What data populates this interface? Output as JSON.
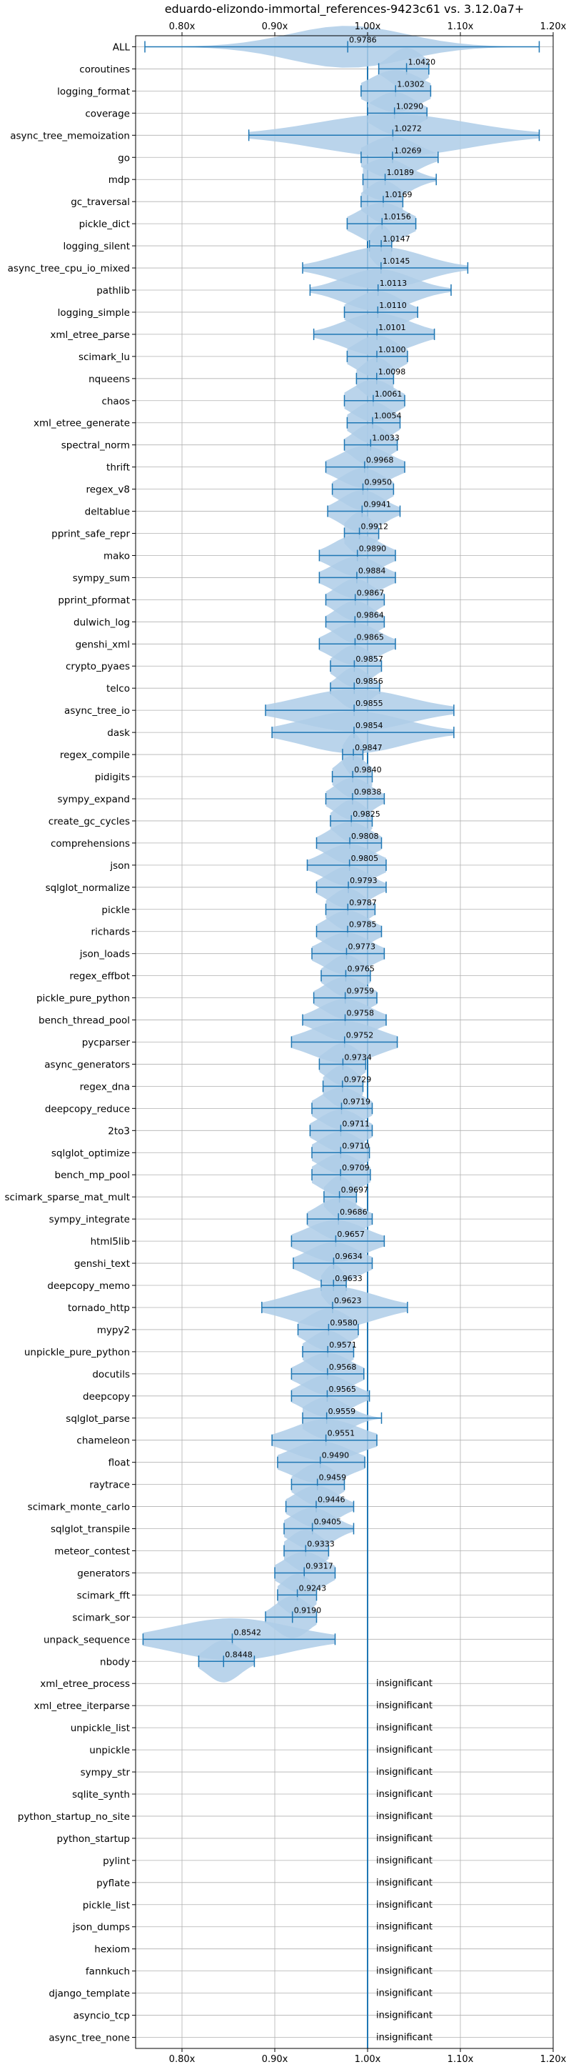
{
  "chart_data": {
    "type": "violin",
    "title": "eduardo-elizondo-immortal_references-9423c61 vs. 3.12.0a7+",
    "xlim": [
      0.75,
      1.2
    ],
    "xticks": [
      0.8,
      0.9,
      1.0,
      1.1,
      1.2
    ],
    "xtick_labels": [
      "0.80x",
      "0.90x",
      "1.00x",
      "1.10x",
      "1.20x"
    ],
    "reference_line": 1.0,
    "grid": true,
    "colors": {
      "accent": "#1f77b4",
      "violin_fill": "#aecde8",
      "grid": "#b0b0b0"
    },
    "insignificant_label": "insignificant",
    "benchmarks": [
      {
        "name": "ALL",
        "value": 0.9786,
        "value_label": "0.9786",
        "min": 0.76,
        "max": 1.185,
        "spread": 0.07
      },
      {
        "name": "coroutines",
        "value": 1.042,
        "value_label": "1.0420",
        "min": 1.012,
        "max": 1.066,
        "spread": 0.02
      },
      {
        "name": "logging_format",
        "value": 1.0302,
        "value_label": "1.0302",
        "min": 0.993,
        "max": 1.068,
        "spread": 0.03
      },
      {
        "name": "coverage",
        "value": 1.029,
        "value_label": "1.0290",
        "min": 1.0,
        "max": 1.064,
        "spread": 0.025
      },
      {
        "name": "async_tree_memoization",
        "value": 1.0272,
        "value_label": "1.0272",
        "min": 0.872,
        "max": 1.185,
        "spread": 0.09
      },
      {
        "name": "go",
        "value": 1.0269,
        "value_label": "1.0269",
        "min": 0.993,
        "max": 1.076,
        "spread": 0.03
      },
      {
        "name": "mdp",
        "value": 1.0189,
        "value_label": "1.0189",
        "min": 0.995,
        "max": 1.074,
        "spread": 0.028
      },
      {
        "name": "gc_traversal",
        "value": 1.0169,
        "value_label": "1.0169",
        "min": 0.993,
        "max": 1.038,
        "spread": 0.02
      },
      {
        "name": "pickle_dict",
        "value": 1.0156,
        "value_label": "1.0156",
        "min": 0.978,
        "max": 1.052,
        "spread": 0.028
      },
      {
        "name": "logging_silent",
        "value": 1.0147,
        "value_label": "1.0147",
        "min": 1.002,
        "max": 1.026,
        "spread": 0.012
      },
      {
        "name": "async_tree_cpu_io_mixed",
        "value": 1.0145,
        "value_label": "1.0145",
        "min": 0.93,
        "max": 1.108,
        "spread": 0.05
      },
      {
        "name": "pathlib",
        "value": 1.0113,
        "value_label": "1.0113",
        "min": 0.938,
        "max": 1.09,
        "spread": 0.04
      },
      {
        "name": "logging_simple",
        "value": 1.011,
        "value_label": "1.0110",
        "min": 0.975,
        "max": 1.054,
        "spread": 0.028
      },
      {
        "name": "xml_etree_parse",
        "value": 1.0101,
        "value_label": "1.0101",
        "min": 0.942,
        "max": 1.072,
        "spread": 0.04
      },
      {
        "name": "scimark_lu",
        "value": 1.01,
        "value_label": "1.0100",
        "min": 0.978,
        "max": 1.043,
        "spread": 0.025
      },
      {
        "name": "nqueens",
        "value": 1.0098,
        "value_label": "1.0098",
        "min": 0.988,
        "max": 1.028,
        "spread": 0.018
      },
      {
        "name": "chaos",
        "value": 1.0061,
        "value_label": "1.0061",
        "min": 0.975,
        "max": 1.04,
        "spread": 0.025
      },
      {
        "name": "xml_etree_generate",
        "value": 1.0054,
        "value_label": "1.0054",
        "min": 0.978,
        "max": 1.035,
        "spread": 0.022
      },
      {
        "name": "spectral_norm",
        "value": 1.0033,
        "value_label": "1.0033",
        "min": 0.975,
        "max": 1.032,
        "spread": 0.02
      },
      {
        "name": "thrift",
        "value": 0.9968,
        "value_label": "0.9968",
        "min": 0.955,
        "max": 1.04,
        "spread": 0.03
      },
      {
        "name": "regex_v8",
        "value": 0.995,
        "value_label": "0.9950",
        "min": 0.962,
        "max": 1.028,
        "spread": 0.025
      },
      {
        "name": "deltablue",
        "value": 0.9941,
        "value_label": "0.9941",
        "min": 0.957,
        "max": 1.035,
        "spread": 0.025
      },
      {
        "name": "pprint_safe_repr",
        "value": 0.9912,
        "value_label": "0.9912",
        "min": 0.975,
        "max": 1.012,
        "spread": 0.015
      },
      {
        "name": "mako",
        "value": 0.989,
        "value_label": "0.9890",
        "min": 0.948,
        "max": 1.03,
        "spread": 0.028
      },
      {
        "name": "sympy_sum",
        "value": 0.9884,
        "value_label": "0.9884",
        "min": 0.948,
        "max": 1.03,
        "spread": 0.028
      },
      {
        "name": "pprint_pformat",
        "value": 0.9867,
        "value_label": "0.9867",
        "min": 0.955,
        "max": 1.018,
        "spread": 0.022
      },
      {
        "name": "dulwich_log",
        "value": 0.9864,
        "value_label": "0.9864",
        "min": 0.955,
        "max": 1.018,
        "spread": 0.022
      },
      {
        "name": "genshi_xml",
        "value": 0.9865,
        "value_label": "0.9865",
        "min": 0.948,
        "max": 1.03,
        "spread": 0.028
      },
      {
        "name": "crypto_pyaes",
        "value": 0.9857,
        "value_label": "0.9857",
        "min": 0.96,
        "max": 1.015,
        "spread": 0.02
      },
      {
        "name": "telco",
        "value": 0.9856,
        "value_label": "0.9856",
        "min": 0.96,
        "max": 1.013,
        "spread": 0.018
      },
      {
        "name": "async_tree_io",
        "value": 0.9855,
        "value_label": "0.9855",
        "min": 0.89,
        "max": 1.093,
        "spread": 0.065
      },
      {
        "name": "dask",
        "value": 0.9854,
        "value_label": "0.9854",
        "min": 0.897,
        "max": 1.093,
        "spread": 0.06
      },
      {
        "name": "regex_compile",
        "value": 0.9847,
        "value_label": "0.9847",
        "min": 0.973,
        "max": 0.995,
        "spread": 0.01
      },
      {
        "name": "pidigits",
        "value": 0.984,
        "value_label": "0.9840",
        "min": 0.962,
        "max": 1.005,
        "spread": 0.018
      },
      {
        "name": "sympy_expand",
        "value": 0.9838,
        "value_label": "0.9838",
        "min": 0.955,
        "max": 1.018,
        "spread": 0.022
      },
      {
        "name": "create_gc_cycles",
        "value": 0.9825,
        "value_label": "0.9825",
        "min": 0.96,
        "max": 1.005,
        "spread": 0.018
      },
      {
        "name": "comprehensions",
        "value": 0.9808,
        "value_label": "0.9808",
        "min": 0.945,
        "max": 1.015,
        "spread": 0.025
      },
      {
        "name": "json",
        "value": 0.9805,
        "value_label": "0.9805",
        "min": 0.935,
        "max": 1.02,
        "spread": 0.03
      },
      {
        "name": "sqlglot_normalize",
        "value": 0.9793,
        "value_label": "0.9793",
        "min": 0.945,
        "max": 1.02,
        "spread": 0.025
      },
      {
        "name": "pickle",
        "value": 0.9787,
        "value_label": "0.9787",
        "min": 0.955,
        "max": 1.008,
        "spread": 0.02
      },
      {
        "name": "richards",
        "value": 0.9785,
        "value_label": "0.9785",
        "min": 0.945,
        "max": 1.015,
        "spread": 0.025
      },
      {
        "name": "json_loads",
        "value": 0.9773,
        "value_label": "0.9773",
        "min": 0.94,
        "max": 1.018,
        "spread": 0.028
      },
      {
        "name": "regex_effbot",
        "value": 0.9765,
        "value_label": "0.9765",
        "min": 0.95,
        "max": 1.003,
        "spread": 0.02
      },
      {
        "name": "pickle_pure_python",
        "value": 0.9759,
        "value_label": "0.9759",
        "min": 0.942,
        "max": 1.01,
        "spread": 0.025
      },
      {
        "name": "bench_thread_pool",
        "value": 0.9758,
        "value_label": "0.9758",
        "min": 0.93,
        "max": 1.02,
        "spread": 0.03
      },
      {
        "name": "pycparser",
        "value": 0.9752,
        "value_label": "0.9752",
        "min": 0.918,
        "max": 1.032,
        "spread": 0.04
      },
      {
        "name": "async_generators",
        "value": 0.9734,
        "value_label": "0.9734",
        "min": 0.948,
        "max": 0.998,
        "spread": 0.02
      },
      {
        "name": "regex_dna",
        "value": 0.9729,
        "value_label": "0.9729",
        "min": 0.952,
        "max": 0.995,
        "spread": 0.018
      },
      {
        "name": "deepcopy_reduce",
        "value": 0.9719,
        "value_label": "0.9719",
        "min": 0.94,
        "max": 1.005,
        "spread": 0.025
      },
      {
        "name": "2to3",
        "value": 0.9711,
        "value_label": "0.9711",
        "min": 0.938,
        "max": 1.005,
        "spread": 0.025
      },
      {
        "name": "sqlglot_optimize",
        "value": 0.971,
        "value_label": "0.9710",
        "min": 0.94,
        "max": 1.002,
        "spread": 0.025
      },
      {
        "name": "bench_mp_pool",
        "value": 0.9709,
        "value_label": "0.9709",
        "min": 0.94,
        "max": 1.003,
        "spread": 0.025
      },
      {
        "name": "scimark_sparse_mat_mult",
        "value": 0.9697,
        "value_label": "0.9697",
        "min": 0.953,
        "max": 0.988,
        "spread": 0.015
      },
      {
        "name": "sympy_integrate",
        "value": 0.9686,
        "value_label": "0.9686",
        "min": 0.935,
        "max": 1.005,
        "spread": 0.025
      },
      {
        "name": "html5lib",
        "value": 0.9657,
        "value_label": "0.9657",
        "min": 0.918,
        "max": 1.018,
        "spread": 0.035
      },
      {
        "name": "genshi_text",
        "value": 0.9634,
        "value_label": "0.9634",
        "min": 0.92,
        "max": 1.005,
        "spread": 0.03
      },
      {
        "name": "deepcopy_memo",
        "value": 0.9633,
        "value_label": "0.9633",
        "min": 0.95,
        "max": 0.977,
        "spread": 0.012
      },
      {
        "name": "tornado_http",
        "value": 0.9623,
        "value_label": "0.9623",
        "min": 0.886,
        "max": 1.043,
        "spread": 0.05
      },
      {
        "name": "mypy2",
        "value": 0.958,
        "value_label": "0.9580",
        "min": 0.925,
        "max": 0.99,
        "spread": 0.025
      },
      {
        "name": "unpickle_pure_python",
        "value": 0.9571,
        "value_label": "0.9571",
        "min": 0.93,
        "max": 0.985,
        "spread": 0.022
      },
      {
        "name": "docutils",
        "value": 0.9568,
        "value_label": "0.9568",
        "min": 0.918,
        "max": 0.996,
        "spread": 0.028
      },
      {
        "name": "deepcopy",
        "value": 0.9565,
        "value_label": "0.9565",
        "min": 0.918,
        "max": 1.002,
        "spread": 0.028
      },
      {
        "name": "sqlglot_parse",
        "value": 0.9559,
        "value_label": "0.9559",
        "min": 0.93,
        "max": 1.015,
        "spread": 0.025
      },
      {
        "name": "chameleon",
        "value": 0.9551,
        "value_label": "0.9551",
        "min": 0.897,
        "max": 1.01,
        "spread": 0.04
      },
      {
        "name": "float",
        "value": 0.949,
        "value_label": "0.9490",
        "min": 0.903,
        "max": 0.997,
        "spread": 0.035
      },
      {
        "name": "raytrace",
        "value": 0.9459,
        "value_label": "0.9459",
        "min": 0.918,
        "max": 0.975,
        "spread": 0.022
      },
      {
        "name": "scimark_monte_carlo",
        "value": 0.9446,
        "value_label": "0.9446",
        "min": 0.912,
        "max": 0.985,
        "spread": 0.025
      },
      {
        "name": "sqlglot_transpile",
        "value": 0.9405,
        "value_label": "0.9405",
        "min": 0.91,
        "max": 0.985,
        "spread": 0.025
      },
      {
        "name": "meteor_contest",
        "value": 0.9333,
        "value_label": "0.9333",
        "min": 0.91,
        "max": 0.958,
        "spread": 0.02
      },
      {
        "name": "generators",
        "value": 0.9317,
        "value_label": "0.9317",
        "min": 0.9,
        "max": 0.965,
        "spread": 0.025
      },
      {
        "name": "scimark_fft",
        "value": 0.9243,
        "value_label": "0.9243",
        "min": 0.903,
        "max": 0.945,
        "spread": 0.018
      },
      {
        "name": "scimark_sor",
        "value": 0.919,
        "value_label": "0.9190",
        "min": 0.89,
        "max": 0.945,
        "spread": 0.02
      },
      {
        "name": "unpack_sequence",
        "value": 0.8542,
        "value_label": "0.8542",
        "min": 0.758,
        "max": 0.965,
        "spread": 0.07
      },
      {
        "name": "nbody",
        "value": 0.8448,
        "value_label": "0.8448",
        "min": 0.818,
        "max": 0.878,
        "spread": 0.02
      },
      {
        "name": "xml_etree_process",
        "value": null,
        "value_label": "insignificant"
      },
      {
        "name": "xml_etree_iterparse",
        "value": null,
        "value_label": "insignificant"
      },
      {
        "name": "unpickle_list",
        "value": null,
        "value_label": "insignificant"
      },
      {
        "name": "unpickle",
        "value": null,
        "value_label": "insignificant"
      },
      {
        "name": "sympy_str",
        "value": null,
        "value_label": "insignificant"
      },
      {
        "name": "sqlite_synth",
        "value": null,
        "value_label": "insignificant"
      },
      {
        "name": "python_startup_no_site",
        "value": null,
        "value_label": "insignificant"
      },
      {
        "name": "python_startup",
        "value": null,
        "value_label": "insignificant"
      },
      {
        "name": "pylint",
        "value": null,
        "value_label": "insignificant"
      },
      {
        "name": "pyflate",
        "value": null,
        "value_label": "insignificant"
      },
      {
        "name": "pickle_list",
        "value": null,
        "value_label": "insignificant"
      },
      {
        "name": "json_dumps",
        "value": null,
        "value_label": "insignificant"
      },
      {
        "name": "hexiom",
        "value": null,
        "value_label": "insignificant"
      },
      {
        "name": "fannkuch",
        "value": null,
        "value_label": "insignificant"
      },
      {
        "name": "django_template",
        "value": null,
        "value_label": "insignificant"
      },
      {
        "name": "asyncio_tcp",
        "value": null,
        "value_label": "insignificant"
      },
      {
        "name": "async_tree_none",
        "value": null,
        "value_label": "insignificant"
      }
    ]
  }
}
